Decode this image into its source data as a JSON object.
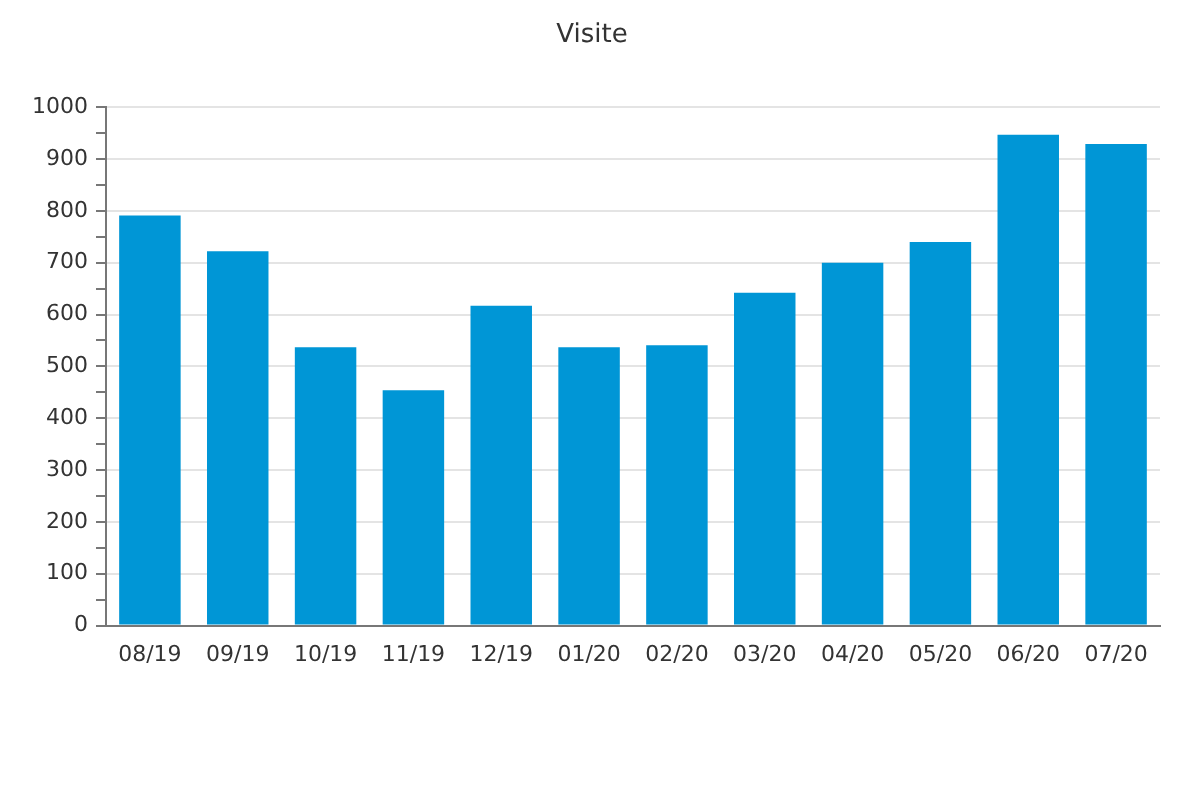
{
  "chart_data": {
    "type": "bar",
    "title": "Visite",
    "categories": [
      "08/19",
      "09/19",
      "10/19",
      "11/19",
      "12/19",
      "01/20",
      "02/20",
      "03/20",
      "04/20",
      "05/20",
      "06/20",
      "07/20"
    ],
    "values": [
      791,
      722,
      537,
      454,
      617,
      537,
      541,
      642,
      700,
      740,
      947,
      929
    ],
    "color": "#0096d6",
    "ylim": [
      0,
      1000
    ],
    "yticks": [
      0,
      {
        "value": 50,
        "label": null
      },
      100,
      {
        "value": 150,
        "label": null
      },
      200,
      {
        "value": 250,
        "label": null
      },
      300,
      {
        "value": 350,
        "label": null
      },
      400,
      {
        "value": 450,
        "label": null
      },
      500,
      {
        "value": 550,
        "label": null
      },
      600,
      {
        "value": 650,
        "label": null
      },
      700,
      {
        "value": 750,
        "label": null
      },
      800,
      {
        "value": 850,
        "label": null
      },
      900,
      {
        "value": 950,
        "label": null
      },
      1000
    ],
    "grid": "y"
  }
}
